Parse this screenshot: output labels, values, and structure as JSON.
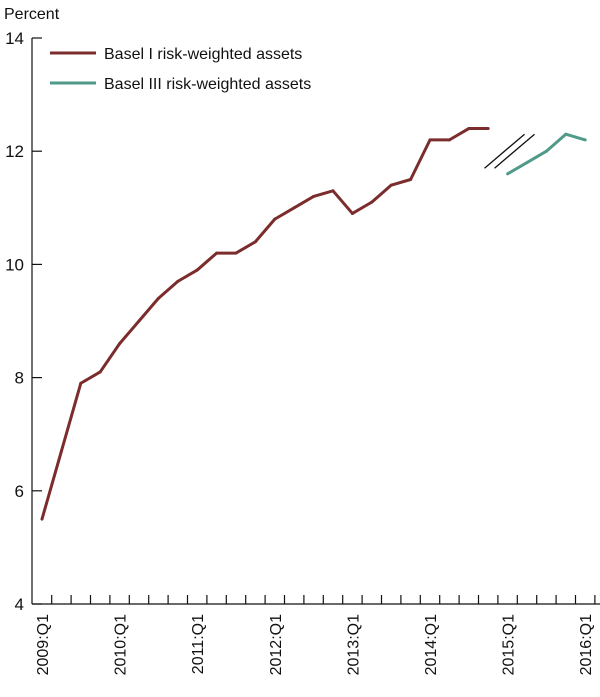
{
  "chart_data": {
    "type": "line",
    "ylabel": "Percent",
    "xlabel": "",
    "ylim": [
      4,
      14
    ],
    "yticks": [
      "4",
      "6",
      "8",
      "10",
      "12",
      "14"
    ],
    "x_tick_labels": [
      "2009:Q1",
      "2010:Q1",
      "2011:Q1",
      "2012:Q1",
      "2013:Q1",
      "2014:Q1",
      "2015:Q1",
      "2016:Q1"
    ],
    "categories": [
      "2009:Q1",
      "2009:Q2",
      "2009:Q3",
      "2009:Q4",
      "2010:Q1",
      "2010:Q2",
      "2010:Q3",
      "2010:Q4",
      "2011:Q1",
      "2011:Q2",
      "2011:Q3",
      "2011:Q4",
      "2012:Q1",
      "2012:Q2",
      "2012:Q3",
      "2012:Q4",
      "2013:Q1",
      "2013:Q2",
      "2013:Q3",
      "2013:Q4",
      "2014:Q1",
      "2014:Q2",
      "2014:Q3",
      "2014:Q4",
      "2015:Q1",
      "2015:Q2",
      "2015:Q3",
      "2015:Q4",
      "2016:Q1"
    ],
    "series": [
      {
        "name": "Basel I risk-weighted assets",
        "color": "#7b2c2c",
        "values": [
          5.5,
          6.7,
          7.9,
          8.1,
          8.6,
          9.0,
          9.4,
          9.7,
          9.9,
          10.2,
          10.2,
          10.4,
          10.8,
          11.0,
          11.2,
          11.3,
          10.9,
          11.1,
          11.4,
          11.5,
          12.2,
          12.2,
          12.4,
          12.4,
          null,
          null,
          null,
          null,
          null
        ]
      },
      {
        "name": "Basel III risk-weighted assets",
        "color": "#4f9a88",
        "values": [
          null,
          null,
          null,
          null,
          null,
          null,
          null,
          null,
          null,
          null,
          null,
          null,
          null,
          null,
          null,
          null,
          null,
          null,
          null,
          null,
          null,
          null,
          null,
          null,
          11.6,
          11.8,
          12.0,
          12.3,
          12.2
        ]
      }
    ],
    "series_break": {
      "between": [
        "2014:Q4",
        "2015:Q1"
      ],
      "center_y": 12.0
    },
    "legend_position": "top-left",
    "grid": false
  }
}
